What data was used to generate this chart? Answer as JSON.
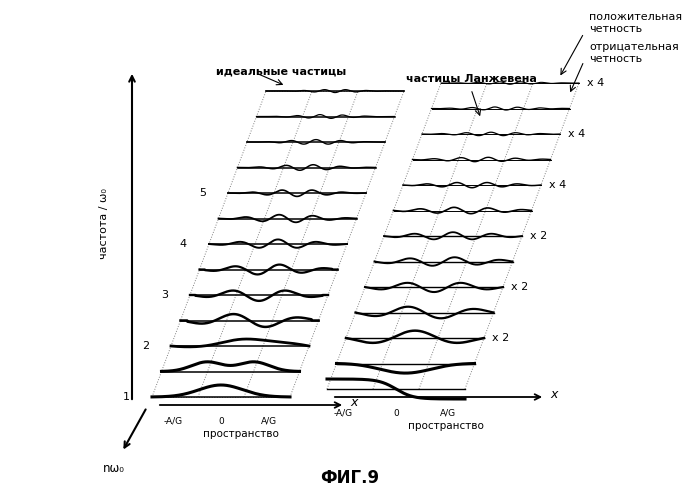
{
  "title": "ФИГ.9",
  "label_ideal": "идеальные частицы",
  "label_langevin": "частицы Ланжевена",
  "label_pos_parity": "положительная\nчетность",
  "label_neg_parity": "отрицательная\nчетность",
  "label_freq": "частота / ω₀",
  "label_nw0": "nω₀",
  "label_space": "пространство",
  "label_x": "x",
  "x_ticks_left": [
    "-A/G",
    "0",
    "A/G"
  ],
  "x_ticks_right": [
    "-A/G",
    "0",
    "A/G"
  ],
  "scale_labels": [
    "x 2",
    "x 2",
    "x 2",
    "x 4",
    "x 4",
    "x 4"
  ],
  "freq_labels": [
    "1",
    "2",
    "3",
    "4",
    "5"
  ],
  "n_rows": 13,
  "background_color": "#ffffff",
  "fig_width": 6.99,
  "fig_height": 4.93,
  "dpi": 100
}
